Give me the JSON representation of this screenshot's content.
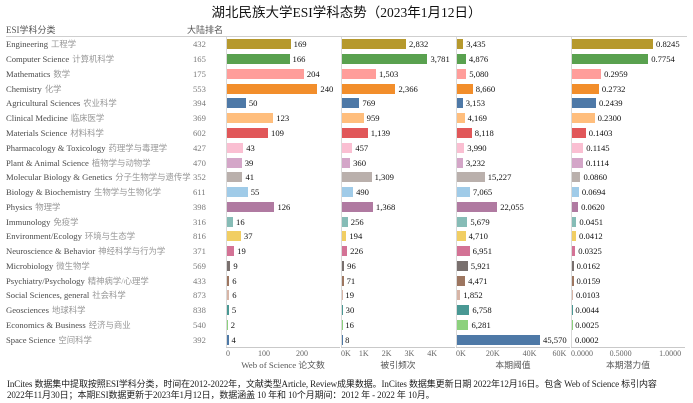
{
  "title": "湖北民族大学ESI学科态势（2023年1月12日）",
  "headers": {
    "category": "ESI学科分类",
    "rank": "大陆排名"
  },
  "footnote": {
    "line1": "InCites 数据集中提取按照ESI学科分类，时间在2012-2022年，文献类型Article, Review成果数据。InCites 数据集更新日期 2022年12月16日。包含 Web of Science 标引内容",
    "line2": "2022年11月30日；本期ESI数据更新于2023年1月12日，数据涵盖 10 年和 10个月期间：2012 年 - 2022 年 10月。"
  },
  "chart_data": {
    "type": "bar",
    "orientation": "horizontal",
    "title": "湖北民族大学ESI学科态势（2023年1月12日）",
    "grid": false,
    "legend": "none",
    "categories_en": [
      "Engineering",
      "Computer Science",
      "Mathematics",
      "Chemistry",
      "Agricultural Sciences",
      "Clinical Medicine",
      "Materials Science",
      "Pharmacology & Toxicology",
      "Plant & Animal Science",
      "Molecular Biology & Genetics",
      "Biology & Biochemistry",
      "Physics",
      "Immunology",
      "Environment/Ecology",
      "Neuroscience & Behavior",
      "Microbiology",
      "Psychiatry/Psychology",
      "Social Sciences, general",
      "Geosciences",
      "Economics & Business",
      "Space Science"
    ],
    "categories_zh": [
      "工程学",
      "计算机科学",
      "数学",
      "化学",
      "农业科学",
      "临床医学",
      "材料科学",
      "药理学与毒理学",
      "植物学与动物学",
      "分子生物学与遗传学",
      "生物学与生物化学",
      "物理学",
      "免疫学",
      "环境与生态学",
      "神经科学与行为学",
      "微生物学",
      "精神病学/心理学",
      "社会科学",
      "地球科学",
      "经济与商业",
      "空间科学"
    ],
    "mainland_rank": [
      432,
      165,
      175,
      553,
      394,
      369,
      602,
      427,
      470,
      352,
      611,
      398,
      316,
      816,
      371,
      569,
      433,
      873,
      838,
      540,
      392
    ],
    "bar_colors": [
      "#B6992D",
      "#59A14F",
      "#FF9D9A",
      "#F28E2B",
      "#4E79A7",
      "#FFBE7D",
      "#E15759",
      "#FABFD2",
      "#D4A6C8",
      "#BAB0AC",
      "#A0CBE8",
      "#B07AA1",
      "#86BCB6",
      "#F1CE63",
      "#D37295",
      "#79706E",
      "#9D7660",
      "#D7B5A6",
      "#499894",
      "#8CD17D",
      "#4E79A7"
    ],
    "series": [
      {
        "name": "Web of Science 论文数",
        "format": "int",
        "xlim": [
          0,
          300
        ],
        "ticks": [
          {
            "v": 0,
            "label": "0"
          },
          {
            "v": 100,
            "label": "100"
          },
          {
            "v": 200,
            "label": "200"
          }
        ],
        "values": [
          169,
          166,
          204,
          240,
          50,
          123,
          109,
          43,
          39,
          41,
          55,
          126,
          16,
          37,
          19,
          9,
          6,
          6,
          5,
          2,
          4
        ]
      },
      {
        "name": "被引频次",
        "format": "thousands",
        "xlim": [
          0,
          5000
        ],
        "ticks": [
          {
            "v": 0,
            "label": "0K"
          },
          {
            "v": 1000,
            "label": "1K"
          },
          {
            "v": 2000,
            "label": "2K"
          },
          {
            "v": 3000,
            "label": "3K"
          },
          {
            "v": 4000,
            "label": "4K"
          }
        ],
        "values": [
          2832,
          3781,
          1503,
          2366,
          769,
          959,
          1139,
          457,
          360,
          1309,
          490,
          1368,
          256,
          194,
          226,
          96,
          71,
          19,
          30,
          16,
          8
        ]
      },
      {
        "name": "本期阈值",
        "format": "thousands",
        "xlim": [
          0,
          62000
        ],
        "ticks": [
          {
            "v": 0,
            "label": "0K"
          },
          {
            "v": 20000,
            "label": "20K"
          },
          {
            "v": 40000,
            "label": "40K"
          },
          {
            "v": 60000,
            "label": "60K"
          }
        ],
        "values": [
          3435,
          4876,
          5080,
          8660,
          3153,
          4169,
          8118,
          3990,
          3232,
          15227,
          7065,
          22055,
          5679,
          4710,
          6951,
          5921,
          4471,
          1852,
          6758,
          6281,
          45570
        ]
      },
      {
        "name": "本期潜力值",
        "format": "fixed4",
        "xlim": [
          0,
          1.15
        ],
        "ticks": [
          {
            "v": 0,
            "label": "0.0000"
          },
          {
            "v": 0.5,
            "label": "0.5000"
          },
          {
            "v": 1.0,
            "label": "1.0000"
          }
        ],
        "values": [
          0.8245,
          0.7754,
          0.2959,
          0.2732,
          0.2439,
          0.23,
          0.1403,
          0.1145,
          0.1114,
          0.086,
          0.0694,
          0.062,
          0.0451,
          0.0412,
          0.0325,
          0.0162,
          0.0159,
          0.0103,
          0.0044,
          0.0025,
          0.0002
        ]
      }
    ]
  }
}
